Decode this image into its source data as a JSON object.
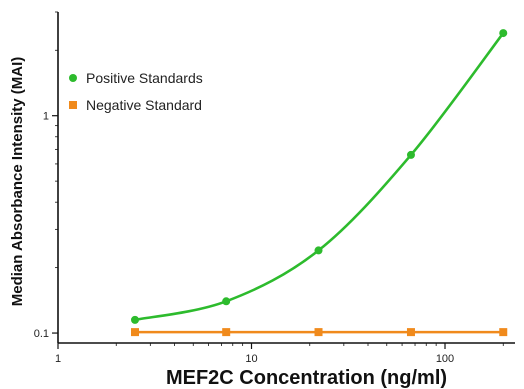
{
  "chart_data": {
    "type": "line",
    "title": "",
    "xlabel": "MEF2C Concentration (ng/ml)",
    "ylabel": "Median Absorbance Intensity (MAI)",
    "x_scale": "log",
    "y_scale": "log",
    "xlim": [
      1,
      230
    ],
    "ylim": [
      0.09,
      3.0
    ],
    "x_ticks": [
      {
        "value": 1,
        "label": "1"
      },
      {
        "value": 10,
        "label": "10"
      },
      {
        "value": 100,
        "label": "100"
      }
    ],
    "y_ticks": [
      {
        "value": 0.1,
        "label": "0.1"
      },
      {
        "value": 1,
        "label": "1"
      }
    ],
    "grid": false,
    "legend_position": "top-left",
    "series": [
      {
        "name": "Positive Standards",
        "color": "#2dbb2d",
        "marker": "circle",
        "x": [
          2.5,
          7.4,
          22.2,
          66.7,
          200
        ],
        "y": [
          0.115,
          0.14,
          0.24,
          0.66,
          2.4
        ]
      },
      {
        "name": "Negative Standard",
        "color": "#f08a1c",
        "marker": "square",
        "x": [
          2.5,
          7.4,
          22.2,
          66.7,
          200
        ],
        "y": [
          0.101,
          0.101,
          0.101,
          0.101,
          0.101
        ]
      }
    ]
  }
}
